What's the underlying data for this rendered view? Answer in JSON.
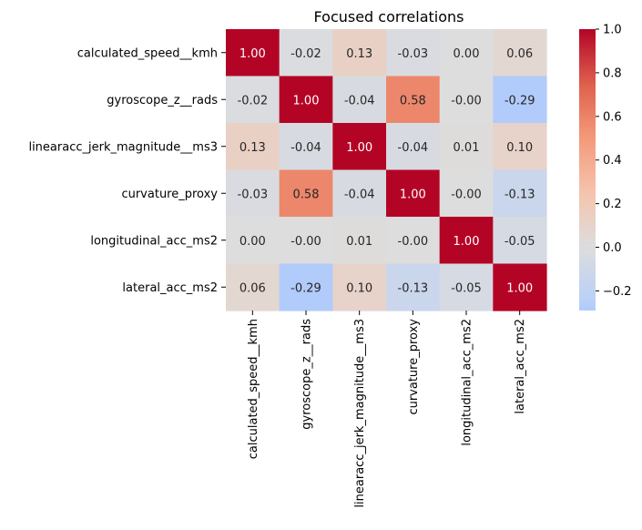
{
  "chart_data": {
    "type": "heatmap",
    "title": "Focused correlations",
    "labels": [
      "calculated_speed__kmh",
      "gyroscope_z__rads",
      "linearacc_jerk_magnitude__ms3",
      "curvature_proxy",
      "longitudinal_acc_ms2",
      "lateral_acc_ms2"
    ],
    "values": [
      [
        1.0,
        -0.02,
        0.13,
        -0.03,
        0.0,
        0.06
      ],
      [
        -0.02,
        1.0,
        -0.04,
        0.58,
        -0.0,
        -0.29
      ],
      [
        0.13,
        -0.04,
        1.0,
        -0.04,
        0.01,
        0.1
      ],
      [
        -0.03,
        0.58,
        -0.04,
        1.0,
        -0.0,
        -0.13
      ],
      [
        0.0,
        -0.0,
        0.01,
        -0.0,
        1.0,
        -0.05
      ],
      [
        0.06,
        -0.29,
        0.1,
        -0.13,
        -0.05,
        1.0
      ]
    ],
    "value_labels": [
      [
        "1.00",
        "-0.02",
        "0.13",
        "-0.03",
        "0.00",
        "0.06"
      ],
      [
        "-0.02",
        "1.00",
        "-0.04",
        "0.58",
        "-0.00",
        "-0.29"
      ],
      [
        "0.13",
        "-0.04",
        "1.00",
        "-0.04",
        "0.01",
        "0.10"
      ],
      [
        "-0.03",
        "0.58",
        "-0.04",
        "1.00",
        "-0.00",
        "-0.13"
      ],
      [
        "0.00",
        "-0.00",
        "0.01",
        "-0.00",
        "1.00",
        "-0.05"
      ],
      [
        "0.06",
        "-0.29",
        "0.10",
        "-0.13",
        "-0.05",
        "1.00"
      ]
    ],
    "colormap": "coolwarm",
    "colorbar": {
      "vmin": -0.29,
      "vmax": 1.0,
      "center": 0,
      "ticks": [
        -0.2,
        0.0,
        0.2,
        0.4,
        0.6,
        0.8,
        1.0
      ],
      "tick_labels": [
        "−0.2",
        "0.0",
        "0.2",
        "0.4",
        "0.6",
        "0.8",
        "1.0"
      ]
    },
    "colors": {
      "cold_end": "#3b4cc0",
      "neutral": "#dddddd",
      "hot_end": "#b40426"
    }
  }
}
